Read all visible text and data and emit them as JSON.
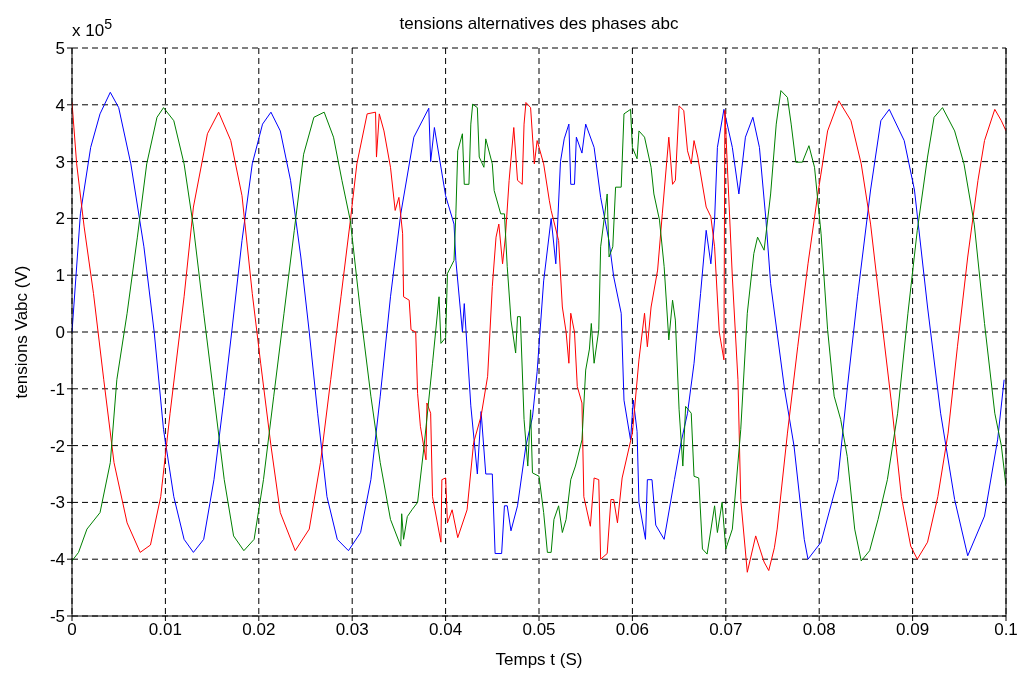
{
  "chart_data": {
    "type": "line",
    "title": "tensions alternatives des phases abc",
    "xlabel": "Temps t (S)",
    "ylabel": "tensions Vabc (V)",
    "annotations": [
      "x 10$^{5}$"
    ],
    "xlim": [
      0,
      0.1
    ],
    "xticks": [
      0,
      0.01,
      0.02,
      0.03,
      0.04,
      0.05,
      0.06,
      0.07,
      0.08,
      0.09,
      0.1
    ],
    "ylim": [
      -5,
      5
    ],
    "yticks": [
      -5,
      -4,
      -3,
      -2,
      -1,
      0,
      1,
      2,
      3,
      4,
      5
    ],
    "grid": true,
    "series": [
      {
        "color": "#0000ff",
        "x": [
          0,
          0.0009,
          0.002,
          0.003,
          0.0041,
          0.005,
          0.0063,
          0.0077,
          0.0088,
          0.0098,
          0.0109,
          0.012,
          0.013,
          0.0141,
          0.0152,
          0.0163,
          0.0171,
          0.0182,
          0.0193,
          0.0204,
          0.0213,
          0.0223,
          0.0234,
          0.0245,
          0.0254,
          0.0263,
          0.0273,
          0.0284,
          0.0296,
          0.0309,
          0.032,
          0.033,
          0.0341,
          0.0352,
          0.0366,
          0.0382,
          0.0384,
          0.0388,
          0.04,
          0.0409,
          0.0411,
          0.0418,
          0.042,
          0.0427,
          0.0434,
          0.0438,
          0.0443,
          0.045,
          0.0453,
          0.046,
          0.0463,
          0.0466,
          0.047,
          0.0477,
          0.0486,
          0.0493,
          0.0498,
          0.0505,
          0.0513,
          0.0518,
          0.0523,
          0.0527,
          0.0532,
          0.0534,
          0.0538,
          0.054,
          0.0546,
          0.055,
          0.0559,
          0.0566,
          0.0575,
          0.058,
          0.0588,
          0.0591,
          0.0598,
          0.0601,
          0.0605,
          0.0607,
          0.0614,
          0.0616,
          0.0621,
          0.0625,
          0.0634,
          0.0645,
          0.0652,
          0.0659,
          0.0666,
          0.0673,
          0.0679,
          0.0684,
          0.0688,
          0.0691,
          0.0698,
          0.0707,
          0.0714,
          0.0721,
          0.0729,
          0.0736,
          0.0743,
          0.0748,
          0.0763,
          0.0773,
          0.0784,
          0.0788,
          0.0802,
          0.082,
          0.083,
          0.0841,
          0.0855,
          0.0866,
          0.0875,
          0.0891,
          0.0902,
          0.0916,
          0.093,
          0.0945,
          0.0959,
          0.0977,
          0.0991,
          0.0998
        ],
        "values": [
          0,
          2.08,
          3.25,
          3.84,
          4.22,
          3.95,
          2.96,
          1.5,
          0,
          -1.72,
          -2.9,
          -3.65,
          -3.88,
          -3.65,
          -2.6,
          -1.13,
          0,
          1.61,
          2.96,
          3.66,
          3.87,
          3.54,
          2.67,
          1.32,
          0,
          -1.43,
          -2.9,
          -3.65,
          -3.85,
          -3.53,
          -2.6,
          -1.13,
          0.62,
          2.08,
          3.43,
          3.94,
          3.0,
          3.6,
          2.4,
          1.9,
          1.26,
          0,
          0.5,
          -1.3,
          -2.5,
          -1.4,
          -2.5,
          -2.5,
          -3.9,
          -3.9,
          -3.06,
          -3.06,
          -3.5,
          -3.06,
          -2.0,
          -1.5,
          -0.7,
          0.9,
          2.0,
          1.2,
          3.0,
          3.4,
          3.66,
          2.6,
          2.6,
          3.43,
          3.15,
          3.66,
          3.25,
          2.37,
          1.6,
          0.97,
          0.33,
          -1.2,
          -1.9,
          -1.2,
          -1.75,
          -3.0,
          -3.65,
          -2.6,
          -2.6,
          -3.4,
          -3.65,
          -2.6,
          -1.95,
          -1.43,
          -0.55,
          0.68,
          1.79,
          1.2,
          1.97,
          3.25,
          3.92,
          3.25,
          2.43,
          3.43,
          3.78,
          3.25,
          1.97,
          0.85,
          -1.02,
          -2.0,
          -3.65,
          -4.0,
          -3.7,
          -2.6,
          -1.0,
          0.62,
          2.5,
          3.72,
          3.92,
          3.37,
          2.5,
          0.44,
          -1.43,
          -2.95,
          -3.94,
          -3.24,
          -1.9,
          -0.84
        ]
      },
      {
        "color": "#ff0000",
        "x": [
          0,
          0.0005,
          0.0013,
          0.0023,
          0.0034,
          0.0045,
          0.0059,
          0.0073,
          0.0084,
          0.0095,
          0.0105,
          0.012,
          0.013,
          0.0145,
          0.0157,
          0.017,
          0.0182,
          0.0193,
          0.0202,
          0.0213,
          0.0223,
          0.0239,
          0.0254,
          0.0266,
          0.0277,
          0.0288,
          0.0298,
          0.0305,
          0.0316,
          0.0325,
          0.0326,
          0.0329,
          0.0334,
          0.0341,
          0.0346,
          0.035,
          0.0354,
          0.0355,
          0.0361,
          0.0363,
          0.0368,
          0.037,
          0.0373,
          0.0379,
          0.038,
          0.0384,
          0.0386,
          0.0395,
          0.0396,
          0.04,
          0.0402,
          0.0407,
          0.0413,
          0.0423,
          0.043,
          0.0438,
          0.0445,
          0.045,
          0.0454,
          0.0457,
          0.0461,
          0.0464,
          0.0468,
          0.0473,
          0.0477,
          0.0482,
          0.0484,
          0.0486,
          0.0491,
          0.0495,
          0.0498,
          0.0505,
          0.0511,
          0.0513,
          0.0521,
          0.0525,
          0.0529,
          0.0532,
          0.0534,
          0.0538,
          0.0541,
          0.0546,
          0.0548,
          0.0555,
          0.0559,
          0.0564,
          0.0566,
          0.0573,
          0.0577,
          0.058,
          0.0584,
          0.0589,
          0.06,
          0.0607,
          0.0613,
          0.0616,
          0.062,
          0.0627,
          0.0632,
          0.0639,
          0.0643,
          0.0646,
          0.065,
          0.0655,
          0.0659,
          0.0663,
          0.0666,
          0.067,
          0.0679,
          0.0684,
          0.0688,
          0.0693,
          0.0698,
          0.0699,
          0.0707,
          0.0713,
          0.0716,
          0.0723,
          0.0732,
          0.0741,
          0.0746,
          0.0752,
          0.0755,
          0.0766,
          0.0777,
          0.0788,
          0.0798,
          0.0809,
          0.0821,
          0.0834,
          0.0845,
          0.0855,
          0.0866,
          0.0877,
          0.0888,
          0.0898,
          0.0905,
          0.0916,
          0.0927,
          0.0938,
          0.0948,
          0.0959,
          0.097,
          0.0977,
          0.0988,
          0.0995,
          0.1
        ],
        "values": [
          4.04,
          2.96,
          1.85,
          0.68,
          -0.84,
          -2.3,
          -3.36,
          -3.88,
          -3.75,
          -2.9,
          -1.43,
          0.62,
          2.2,
          3.49,
          3.87,
          3.37,
          2.4,
          0.68,
          -0.55,
          -2.0,
          -3.18,
          -3.85,
          -3.47,
          -2.3,
          -0.84,
          0.62,
          1.96,
          2.96,
          3.84,
          3.87,
          3.08,
          3.84,
          3.54,
          2.9,
          2.14,
          2.37,
          1.73,
          0.62,
          0.56,
          0.04,
          0,
          -1.08,
          -1.66,
          -2.25,
          -1.25,
          -1.43,
          -2.9,
          -3.7,
          -2.6,
          -2.57,
          -3.36,
          -3.13,
          -3.62,
          -3.13,
          -1.95,
          -1.48,
          -0.78,
          0.8,
          1.67,
          1.9,
          1.2,
          1.67,
          2.67,
          3.6,
          2.67,
          2.6,
          3.66,
          4.04,
          3.95,
          2.96,
          3.37,
          2.96,
          2.32,
          2.14,
          1.61,
          0.44,
          0,
          -0.55,
          0.33,
          0,
          -0.96,
          -1.25,
          -2.9,
          -3.42,
          -2.57,
          -2.6,
          -4.0,
          -3.9,
          -2.95,
          -2.95,
          -3.36,
          -2.57,
          -1.78,
          -0.49,
          0.33,
          -0.26,
          0.44,
          1.09,
          2.08,
          3.43,
          2.6,
          2.67,
          3.98,
          3.9,
          3.19,
          2.96,
          3.37,
          3.08,
          2.2,
          2.03,
          1.5,
          0,
          -0.49,
          3.9,
          0.97,
          -0.84,
          -2.95,
          -4.23,
          -3.59,
          -4.05,
          -4.2,
          -3.8,
          -3.47,
          -1.78,
          -0.26,
          1.2,
          2.37,
          3.54,
          4.07,
          3.72,
          2.96,
          1.9,
          0.33,
          -1.2,
          -2.9,
          -3.77,
          -4.0,
          -3.7,
          -2.9,
          -1.78,
          -0.26,
          1.32,
          2.67,
          3.37,
          3.92,
          3.72,
          3.54
        ]
      },
      {
        "color": "#008000",
        "x": [
          0,
          0.0007,
          0.0016,
          0.003,
          0.0041,
          0.0048,
          0.0059,
          0.007,
          0.008,
          0.0091,
          0.0098,
          0.0109,
          0.012,
          0.013,
          0.0141,
          0.0152,
          0.0163,
          0.0173,
          0.0184,
          0.0195,
          0.0205,
          0.0216,
          0.0227,
          0.0238,
          0.0248,
          0.0259,
          0.027,
          0.028,
          0.0289,
          0.0298,
          0.0309,
          0.032,
          0.033,
          0.0341,
          0.0352,
          0.0353,
          0.0355,
          0.0359,
          0.0364,
          0.037,
          0.0377,
          0.0386,
          0.0393,
          0.0395,
          0.04,
          0.0402,
          0.0409,
          0.0411,
          0.0413,
          0.0418,
          0.042,
          0.0425,
          0.0427,
          0.0429,
          0.0434,
          0.0436,
          0.0441,
          0.0443,
          0.045,
          0.0452,
          0.0459,
          0.0463,
          0.0466,
          0.047,
          0.0475,
          0.0477,
          0.048,
          0.0484,
          0.0488,
          0.0491,
          0.0493,
          0.05,
          0.0505,
          0.0509,
          0.0513,
          0.0516,
          0.0521,
          0.0525,
          0.0529,
          0.0534,
          0.0539,
          0.0546,
          0.055,
          0.0554,
          0.0556,
          0.0559,
          0.0564,
          0.0566,
          0.057,
          0.0573,
          0.0575,
          0.0579,
          0.0582,
          0.0588,
          0.0591,
          0.0598,
          0.06,
          0.0605,
          0.0607,
          0.0613,
          0.062,
          0.0623,
          0.0629,
          0.0634,
          0.0639,
          0.0643,
          0.0646,
          0.065,
          0.0654,
          0.0657,
          0.0663,
          0.0666,
          0.0671,
          0.0675,
          0.068,
          0.0688,
          0.0691,
          0.0696,
          0.07,
          0.0707,
          0.0716,
          0.0723,
          0.073,
          0.0734,
          0.0741,
          0.0748,
          0.0754,
          0.0759,
          0.0766,
          0.077,
          0.0775,
          0.0782,
          0.0789,
          0.0795,
          0.0802,
          0.0809,
          0.0816,
          0.0823,
          0.083,
          0.0838,
          0.0845,
          0.0854,
          0.0863,
          0.0873,
          0.0884,
          0.0895,
          0.0905,
          0.0916,
          0.0923,
          0.0932,
          0.0945,
          0.0955,
          0.0966,
          0.0977,
          0.0988,
          0.0995,
          0.1
        ],
        "values": [
          -4.03,
          -3.88,
          -3.47,
          -3.18,
          -2.3,
          -0.84,
          0.33,
          1.67,
          2.96,
          3.78,
          3.95,
          3.72,
          2.96,
          1.85,
          0.33,
          -1.13,
          -2.6,
          -3.59,
          -3.85,
          -3.65,
          -2.6,
          -1.13,
          0.33,
          1.79,
          3.13,
          3.78,
          3.87,
          3.43,
          2.67,
          1.96,
          0.33,
          -1.13,
          -2.3,
          -3.3,
          -3.77,
          -3.2,
          -3.65,
          -3.25,
          -3.13,
          -3.0,
          -2.0,
          -0.55,
          0.62,
          -0.2,
          -0.1,
          1.03,
          1.26,
          2.08,
          3.19,
          3.49,
          2.6,
          2.6,
          3.66,
          4.01,
          3.95,
          3.08,
          2.9,
          3.4,
          2.96,
          2.49,
          2.08,
          2.08,
          1.15,
          0.21,
          -0.37,
          0.27,
          0.27,
          -1.54,
          -2.36,
          -1.37,
          -2.48,
          -2.54,
          -3.18,
          -3.88,
          -3.88,
          -3.3,
          -3.06,
          -3.53,
          -3.3,
          -2.6,
          -2.36,
          -1.9,
          -0.67,
          -0.3,
          0.15,
          -0.55,
          0.04,
          1.5,
          2.02,
          2.43,
          1.32,
          1.5,
          2.55,
          2.55,
          3.84,
          3.92,
          3.25,
          3.05,
          3.54,
          3.43,
          2.9,
          2.43,
          1.97,
          1.15,
          -0.14,
          0.56,
          0.21,
          -1.37,
          -2.36,
          -1.31,
          -1.43,
          -2.54,
          -2.57,
          -3.82,
          -3.91,
          -3.06,
          -3.53,
          -3.0,
          -3.82,
          -3.47,
          -1.72,
          0.33,
          1.38,
          1.67,
          1.44,
          2.43,
          3.66,
          4.25,
          4.13,
          3.66,
          2.99,
          2.99,
          3.28,
          2.9,
          1.73,
          0.04,
          -1.13,
          -1.54,
          -2.19,
          -3.47,
          -4.03,
          -3.85,
          -3.3,
          -2.6,
          -1.43,
          0.33,
          1.79,
          3.08,
          3.78,
          3.95,
          3.54,
          2.96,
          1.9,
          0.15,
          -1.43,
          -2.0,
          -2.71
        ]
      }
    ]
  }
}
